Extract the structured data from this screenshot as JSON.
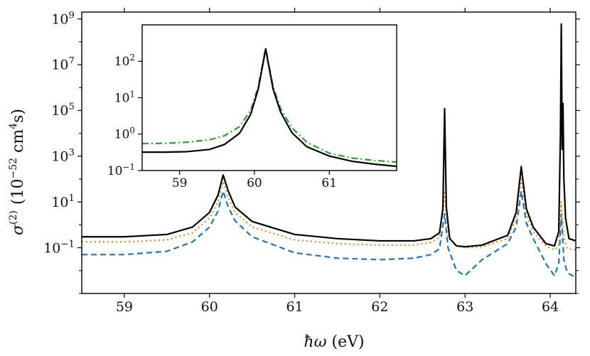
{
  "chart_data": [
    {
      "type": "line",
      "title": "",
      "xlabel": "ħω (eV)",
      "ylabel": "σ(2) (10−52 cm4s)",
      "ylabel_parts": {
        "sigma": "σ",
        "order": "(2)",
        "open": "(10",
        "exp": "−52",
        "unit": " cm",
        "unit_exp": "4",
        "close": "s)"
      },
      "xlabel_parts": {
        "hbar_omega": "ħω",
        "unit": " (eV)"
      },
      "x_scale": "linear",
      "y_scale": "log",
      "xlim": [
        58.5,
        64.3
      ],
      "ylim": [
        0.001,
        2000000000
      ],
      "x_ticks": [
        {
          "value": 59,
          "label": "59"
        },
        {
          "value": 60,
          "label": "60"
        },
        {
          "value": 61,
          "label": "61"
        },
        {
          "value": 62,
          "label": "62"
        },
        {
          "value": 63,
          "label": "63"
        },
        {
          "value": 64,
          "label": "64"
        }
      ],
      "y_ticks": [
        {
          "value": 0.1,
          "base": "10",
          "exp": "−1"
        },
        {
          "value": 10,
          "base": "10",
          "exp": "1"
        },
        {
          "value": 1000,
          "base": "10",
          "exp": "3"
        },
        {
          "value": 100000,
          "base": "10",
          "exp": "5"
        },
        {
          "value": 10000000,
          "base": "10",
          "exp": "7"
        },
        {
          "value": 1000000000,
          "base": "10",
          "exp": "9"
        }
      ],
      "grid": false,
      "legend": "none",
      "series": [
        {
          "color": "#1f77b4",
          "line_style": "dashed",
          "x": [
            58.5,
            59.0,
            59.5,
            59.8,
            60.0,
            60.1,
            60.16,
            60.22,
            60.3,
            60.5,
            61.0,
            61.5,
            62.0,
            62.4,
            62.6,
            62.7,
            62.76,
            62.8,
            62.9,
            63.0,
            63.2,
            63.5,
            63.6,
            63.66,
            63.72,
            63.8,
            63.95,
            64.05,
            64.1,
            64.13,
            64.16,
            64.2,
            64.3
          ],
          "y": [
            0.05,
            0.05,
            0.07,
            0.18,
            0.8,
            4.0,
            30,
            6.0,
            1.5,
            0.3,
            0.06,
            0.035,
            0.03,
            0.035,
            0.05,
            0.09,
            3,
            0.1,
            0.01,
            0.006,
            0.03,
            0.15,
            0.8,
            30,
            1.2,
            0.25,
            0.02,
            0.006,
            0.02,
            3,
            0.03,
            0.008,
            0.005
          ]
        },
        {
          "color": "#ff7f0e",
          "line_style": "dotted",
          "x": [
            58.5,
            59.0,
            59.5,
            59.8,
            60.0,
            60.1,
            60.16,
            60.22,
            60.3,
            60.5,
            61.0,
            61.5,
            62.0,
            62.4,
            62.6,
            62.7,
            62.76,
            62.8,
            62.9,
            63.0,
            63.2,
            63.5,
            63.6,
            63.66,
            63.72,
            63.8,
            63.95,
            64.05,
            64.1,
            64.13,
            64.16,
            64.2,
            64.3
          ],
          "y": [
            0.18,
            0.18,
            0.22,
            0.45,
            2.0,
            10,
            80,
            15,
            3.5,
            0.8,
            0.22,
            0.15,
            0.13,
            0.13,
            0.17,
            0.28,
            25,
            0.3,
            0.12,
            0.1,
            0.11,
            0.25,
            2.0,
            100,
            3.0,
            0.5,
            0.12,
            0.08,
            0.12,
            10,
            0.3,
            0.09,
            0.08
          ]
        },
        {
          "color": "#000000",
          "line_style": "solid",
          "x": [
            58.5,
            59.0,
            59.5,
            59.8,
            60.0,
            60.1,
            60.16,
            60.22,
            60.3,
            60.5,
            61.0,
            61.5,
            62.0,
            62.4,
            62.6,
            62.7,
            62.74,
            62.76,
            62.78,
            62.82,
            62.9,
            63.0,
            63.2,
            63.5,
            63.6,
            63.66,
            63.72,
            63.8,
            63.95,
            64.05,
            64.1,
            64.12,
            64.13,
            64.14,
            64.15,
            64.16,
            64.18,
            64.22,
            64.3
          ],
          "y": [
            0.3,
            0.3,
            0.38,
            0.8,
            3.5,
            20,
            150,
            30,
            6.0,
            1.4,
            0.38,
            0.25,
            0.2,
            0.2,
            0.25,
            0.45,
            5,
            120000,
            6,
            0.25,
            0.12,
            0.11,
            0.13,
            0.35,
            3.5,
            350,
            5,
            0.8,
            0.15,
            0.12,
            0.5,
            10000,
            600000000,
            2000,
            200000,
            100,
            2,
            0.25,
            0.2
          ]
        }
      ]
    },
    {
      "type": "line",
      "title": "",
      "xlabel": "",
      "ylabel": "",
      "x_scale": "linear",
      "y_scale": "log",
      "xlim": [
        58.5,
        61.9
      ],
      "ylim": [
        0.1,
        1000
      ],
      "x_ticks": [
        {
          "value": 59,
          "label": "59"
        },
        {
          "value": 60,
          "label": "60"
        },
        {
          "value": 61,
          "label": "61"
        }
      ],
      "y_ticks": [
        {
          "value": 0.1,
          "base": "10",
          "exp": "−1"
        },
        {
          "value": 1,
          "base": "10",
          "exp": "0"
        },
        {
          "value": 10,
          "base": "10",
          "exp": "1"
        },
        {
          "value": 100,
          "base": "10",
          "exp": "2"
        }
      ],
      "grid": false,
      "legend": "none",
      "series": [
        {
          "color": "#2ca02c",
          "line_style": "dashdot",
          "x": [
            58.5,
            58.8,
            59.1,
            59.4,
            59.6,
            59.8,
            59.95,
            60.05,
            60.12,
            60.15,
            60.18,
            60.25,
            60.35,
            60.5,
            60.7,
            61.0,
            61.3,
            61.6,
            61.9
          ],
          "y": [
            0.55,
            0.56,
            0.6,
            0.7,
            0.9,
            1.6,
            4.5,
            20,
            110,
            230,
            110,
            20,
            5,
            1.5,
            0.6,
            0.3,
            0.22,
            0.19,
            0.17
          ]
        },
        {
          "color": "#000000",
          "line_style": "solid",
          "x": [
            58.5,
            58.8,
            59.1,
            59.4,
            59.6,
            59.8,
            59.95,
            60.05,
            60.12,
            60.15,
            60.18,
            60.25,
            60.35,
            60.5,
            60.7,
            61.0,
            61.3,
            61.6,
            61.9
          ],
          "y": [
            0.32,
            0.32,
            0.33,
            0.38,
            0.52,
            1.05,
            3.5,
            17,
            100,
            220,
            100,
            17,
            4,
            1.1,
            0.45,
            0.25,
            0.18,
            0.15,
            0.13
          ]
        }
      ]
    }
  ]
}
